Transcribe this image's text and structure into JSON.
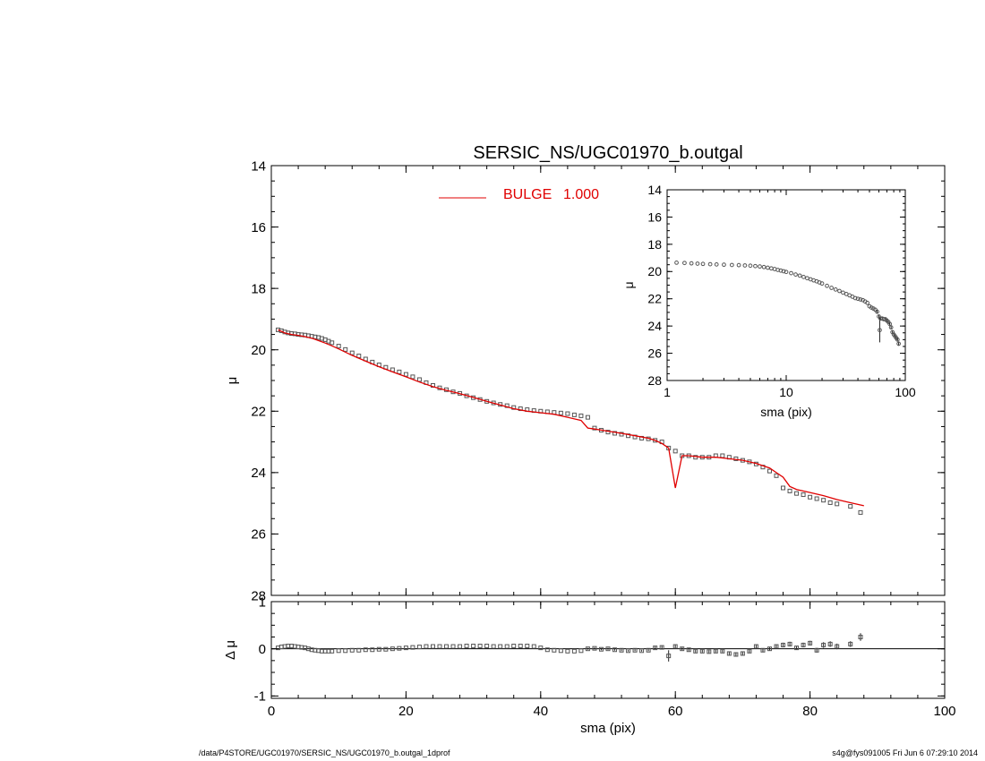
{
  "title": "SERSIC_NS/UGC01970_b.outgal",
  "footer": {
    "left": "/data/P4STORE/UGC01970/SERSIC_NS/UGC01970_b.outgal_1dprof",
    "right": "s4g@fys091005  Fri Jun  6 07:29:10 2014"
  },
  "colors": {
    "model": "#e00000",
    "data": "#555555",
    "axis": "#000000"
  },
  "chart_data": [
    {
      "id": "main",
      "type": "scatter",
      "ylabel": "μ",
      "xlim": [
        0,
        100
      ],
      "ylim": [
        28,
        14
      ],
      "y_inverted": true,
      "xticks": [
        0,
        20,
        40,
        60,
        80,
        100
      ],
      "xticklabels": [],
      "yticks": [
        14,
        16,
        18,
        20,
        22,
        24,
        26,
        28
      ],
      "legend": {
        "label": "BULGE",
        "value": "1.000",
        "placement": "top-center"
      },
      "series": [
        {
          "kind": "points",
          "x": [
            1,
            1.5,
            2,
            2.5,
            3,
            3.5,
            4,
            4.5,
            5,
            5.5,
            6,
            6.5,
            7,
            7.5,
            8,
            8.5,
            9,
            10,
            11,
            12,
            13,
            14,
            15,
            16,
            17,
            18,
            19,
            20,
            21,
            22,
            23,
            24,
            25,
            26,
            27,
            28,
            29,
            30,
            31,
            32,
            33,
            34,
            35,
            36,
            37,
            38,
            39,
            40,
            41,
            42,
            43,
            44,
            45,
            46,
            47,
            48,
            49,
            50,
            51,
            52,
            53,
            54,
            55,
            56,
            57,
            58,
            59,
            60,
            61,
            62,
            63,
            64,
            65,
            66,
            67,
            68,
            69,
            70,
            71,
            72,
            73,
            74,
            75,
            76,
            77,
            78,
            79,
            80,
            81,
            82,
            83,
            84,
            86,
            87.5
          ],
          "y": [
            19.35,
            19.38,
            19.42,
            19.45,
            19.47,
            19.48,
            19.5,
            19.51,
            19.52,
            19.54,
            19.56,
            19.58,
            19.6,
            19.63,
            19.67,
            19.72,
            19.77,
            19.88,
            19.99,
            20.1,
            20.2,
            20.3,
            20.4,
            20.49,
            20.57,
            20.65,
            20.72,
            20.8,
            20.88,
            20.97,
            21.07,
            21.16,
            21.24,
            21.3,
            21.37,
            21.42,
            21.5,
            21.56,
            21.62,
            21.68,
            21.73,
            21.78,
            21.82,
            21.88,
            21.92,
            21.95,
            21.98,
            22.0,
            22.02,
            22.04,
            22.06,
            22.08,
            22.12,
            22.15,
            22.2,
            22.55,
            22.62,
            22.68,
            22.72,
            22.75,
            22.8,
            22.84,
            22.88,
            22.9,
            22.95,
            23.0,
            23.2,
            23.3,
            23.45,
            23.45,
            23.5,
            23.5,
            23.5,
            23.45,
            23.45,
            23.5,
            23.55,
            23.6,
            23.65,
            23.72,
            23.82,
            23.95,
            24.1,
            24.5,
            24.6,
            24.68,
            24.72,
            24.8,
            24.85,
            24.9,
            24.98,
            25.02,
            25.1,
            25.3
          ]
        },
        {
          "kind": "line",
          "name": "BULGE",
          "x": [
            1,
            2,
            3,
            4,
            5,
            6,
            7,
            8,
            9,
            10,
            12,
            14,
            16,
            18,
            20,
            22,
            24,
            26,
            28,
            30,
            32,
            34,
            36,
            38,
            40,
            42,
            44,
            46,
            47,
            48,
            50,
            52,
            54,
            56,
            57,
            58,
            59,
            60,
            61,
            62,
            64,
            66,
            68,
            70,
            72,
            74,
            75,
            76,
            77,
            78,
            80,
            82,
            84,
            86,
            88
          ],
          "y": [
            19.35,
            19.45,
            19.5,
            19.53,
            19.57,
            19.62,
            19.7,
            19.78,
            19.87,
            19.97,
            20.18,
            20.37,
            20.55,
            20.72,
            20.88,
            21.05,
            21.2,
            21.32,
            21.43,
            21.55,
            21.68,
            21.8,
            21.92,
            22.0,
            22.05,
            22.1,
            22.2,
            22.3,
            22.55,
            22.58,
            22.65,
            22.72,
            22.8,
            22.88,
            22.95,
            23.05,
            23.2,
            24.5,
            23.45,
            23.45,
            23.5,
            23.5,
            23.55,
            23.6,
            23.7,
            23.85,
            24.0,
            24.15,
            24.45,
            24.55,
            24.65,
            24.75,
            24.88,
            24.98,
            25.08
          ]
        }
      ]
    },
    {
      "id": "residual",
      "type": "scatter",
      "ylabel": "Δ μ",
      "xlabel": "sma (pix)",
      "xlim": [
        0,
        100
      ],
      "ylim": [
        -1.05,
        1.0
      ],
      "xticks": [
        0,
        20,
        40,
        60,
        80,
        100
      ],
      "xticklabels": [
        "0",
        "20",
        "40",
        "60",
        "80",
        "100"
      ],
      "yticks": [
        -1,
        0,
        1
      ],
      "reference_line": 0,
      "series": [
        {
          "kind": "points",
          "x": [
            1,
            1.5,
            2,
            2.5,
            3,
            3.5,
            4,
            4.5,
            5,
            5.5,
            6,
            6.5,
            7,
            7.5,
            8,
            8.5,
            9,
            10,
            11,
            12,
            13,
            14,
            15,
            16,
            17,
            18,
            19,
            20,
            21,
            22,
            23,
            24,
            25,
            26,
            27,
            28,
            29,
            30,
            31,
            32,
            33,
            34,
            35,
            36,
            37,
            38,
            39,
            40,
            41,
            42,
            43,
            44,
            45,
            46,
            47,
            48,
            49,
            50,
            51,
            52,
            53,
            54,
            55,
            56,
            57,
            58,
            59,
            60,
            61,
            62,
            63,
            64,
            65,
            66,
            67,
            68,
            69,
            70,
            71,
            72,
            73,
            74,
            75,
            76,
            77,
            78,
            79,
            80,
            81,
            82,
            83,
            84,
            86,
            87.5
          ],
          "y": [
            0.02,
            0.04,
            0.05,
            0.06,
            0.06,
            0.05,
            0.04,
            0.03,
            0.02,
            0.0,
            -0.02,
            -0.03,
            -0.04,
            -0.05,
            -0.05,
            -0.05,
            -0.05,
            -0.04,
            -0.04,
            -0.03,
            -0.03,
            -0.02,
            -0.02,
            -0.01,
            -0.01,
            0.0,
            0.01,
            0.02,
            0.03,
            0.04,
            0.05,
            0.05,
            0.05,
            0.05,
            0.05,
            0.05,
            0.06,
            0.06,
            0.06,
            0.06,
            0.05,
            0.05,
            0.05,
            0.06,
            0.06,
            0.06,
            0.05,
            0.02,
            -0.02,
            -0.03,
            -0.04,
            -0.05,
            -0.05,
            -0.04,
            0.0,
            0.01,
            -0.01,
            0.0,
            -0.02,
            -0.03,
            -0.04,
            -0.03,
            -0.04,
            -0.03,
            0.02,
            0.03,
            -0.15,
            0.05,
            0.0,
            -0.02,
            -0.05,
            -0.05,
            -0.06,
            -0.05,
            -0.05,
            -0.1,
            -0.12,
            -0.1,
            -0.05,
            0.05,
            -0.03,
            0.0,
            0.05,
            0.08,
            0.1,
            0.02,
            0.08,
            0.12,
            -0.03,
            0.08,
            0.1,
            0.05,
            0.1,
            0.25
          ],
          "err": [
            0.01,
            0.01,
            0.01,
            0.01,
            0.01,
            0.01,
            0.01,
            0.01,
            0.01,
            0.01,
            0.01,
            0.01,
            0.01,
            0.01,
            0.01,
            0.01,
            0.01,
            0.01,
            0.01,
            0.01,
            0.01,
            0.01,
            0.01,
            0.01,
            0.01,
            0.01,
            0.01,
            0.01,
            0.01,
            0.01,
            0.01,
            0.01,
            0.01,
            0.01,
            0.01,
            0.01,
            0.01,
            0.01,
            0.01,
            0.01,
            0.01,
            0.01,
            0.01,
            0.01,
            0.01,
            0.01,
            0.01,
            0.01,
            0.01,
            0.01,
            0.01,
            0.01,
            0.01,
            0.01,
            0.02,
            0.02,
            0.02,
            0.02,
            0.02,
            0.02,
            0.02,
            0.02,
            0.02,
            0.02,
            0.03,
            0.03,
            0.12,
            0.03,
            0.03,
            0.03,
            0.03,
            0.03,
            0.03,
            0.03,
            0.03,
            0.04,
            0.04,
            0.04,
            0.04,
            0.04,
            0.04,
            0.04,
            0.04,
            0.05,
            0.05,
            0.04,
            0.05,
            0.05,
            0.05,
            0.06,
            0.06,
            0.06,
            0.06,
            0.08
          ]
        }
      ]
    },
    {
      "id": "inset",
      "type": "scatter",
      "xscale": "log",
      "ylabel": "μ",
      "xlabel": "sma (pix)",
      "xlim": [
        1,
        100
      ],
      "ylim": [
        28,
        14
      ],
      "y_inverted": true,
      "xticks": [
        1,
        10,
        100
      ],
      "xticklabels": [
        "1",
        "10",
        "100"
      ],
      "yticks": [
        14,
        16,
        18,
        20,
        22,
        24,
        26,
        28
      ],
      "series": [
        {
          "kind": "points",
          "x": [
            1.2,
            1.4,
            1.6,
            1.8,
            2,
            2.3,
            2.6,
            3,
            3.5,
            4,
            4.5,
            5,
            5.5,
            6,
            6.5,
            7,
            7.5,
            8,
            8.5,
            9,
            9.5,
            10,
            11,
            12,
            13,
            14,
            15,
            16,
            17,
            18,
            19,
            20,
            22,
            24,
            26,
            28,
            30,
            32,
            34,
            36,
            38,
            40,
            42,
            44,
            46,
            48,
            50,
            52,
            54,
            56,
            58,
            60,
            61,
            62,
            64,
            66,
            68,
            70,
            72,
            74,
            76,
            78,
            80,
            82,
            84,
            86,
            88
          ],
          "y": [
            19.35,
            19.37,
            19.4,
            19.42,
            19.44,
            19.46,
            19.48,
            19.5,
            19.52,
            19.53,
            19.55,
            19.57,
            19.6,
            19.63,
            19.67,
            19.72,
            19.77,
            19.82,
            19.88,
            19.93,
            19.98,
            20.03,
            20.12,
            20.22,
            20.3,
            20.4,
            20.49,
            20.57,
            20.65,
            20.72,
            20.8,
            20.88,
            21.05,
            21.2,
            21.32,
            21.43,
            21.55,
            21.65,
            21.75,
            21.85,
            21.95,
            22.0,
            22.05,
            22.1,
            22.2,
            22.3,
            22.55,
            22.65,
            22.72,
            22.8,
            22.95,
            23.3,
            24.3,
            23.45,
            23.45,
            23.5,
            23.5,
            23.6,
            23.7,
            23.85,
            24.1,
            24.45,
            24.62,
            24.75,
            24.88,
            25.0,
            25.3
          ],
          "err": [
            0,
            0,
            0,
            0,
            0,
            0,
            0,
            0,
            0,
            0,
            0,
            0,
            0,
            0,
            0,
            0,
            0,
            0,
            0,
            0,
            0,
            0,
            0,
            0,
            0,
            0,
            0,
            0,
            0,
            0,
            0,
            0,
            0,
            0,
            0,
            0,
            0,
            0,
            0,
            0,
            0,
            0,
            0,
            0,
            0,
            0,
            0,
            0,
            0,
            0,
            0.1,
            0.1,
            0.9,
            0.1,
            0.1,
            0.1,
            0.1,
            0.1,
            0.1,
            0.1,
            0.1,
            0.1,
            0.1,
            0.1,
            0.1,
            0.1,
            0.15
          ]
        }
      ]
    }
  ]
}
